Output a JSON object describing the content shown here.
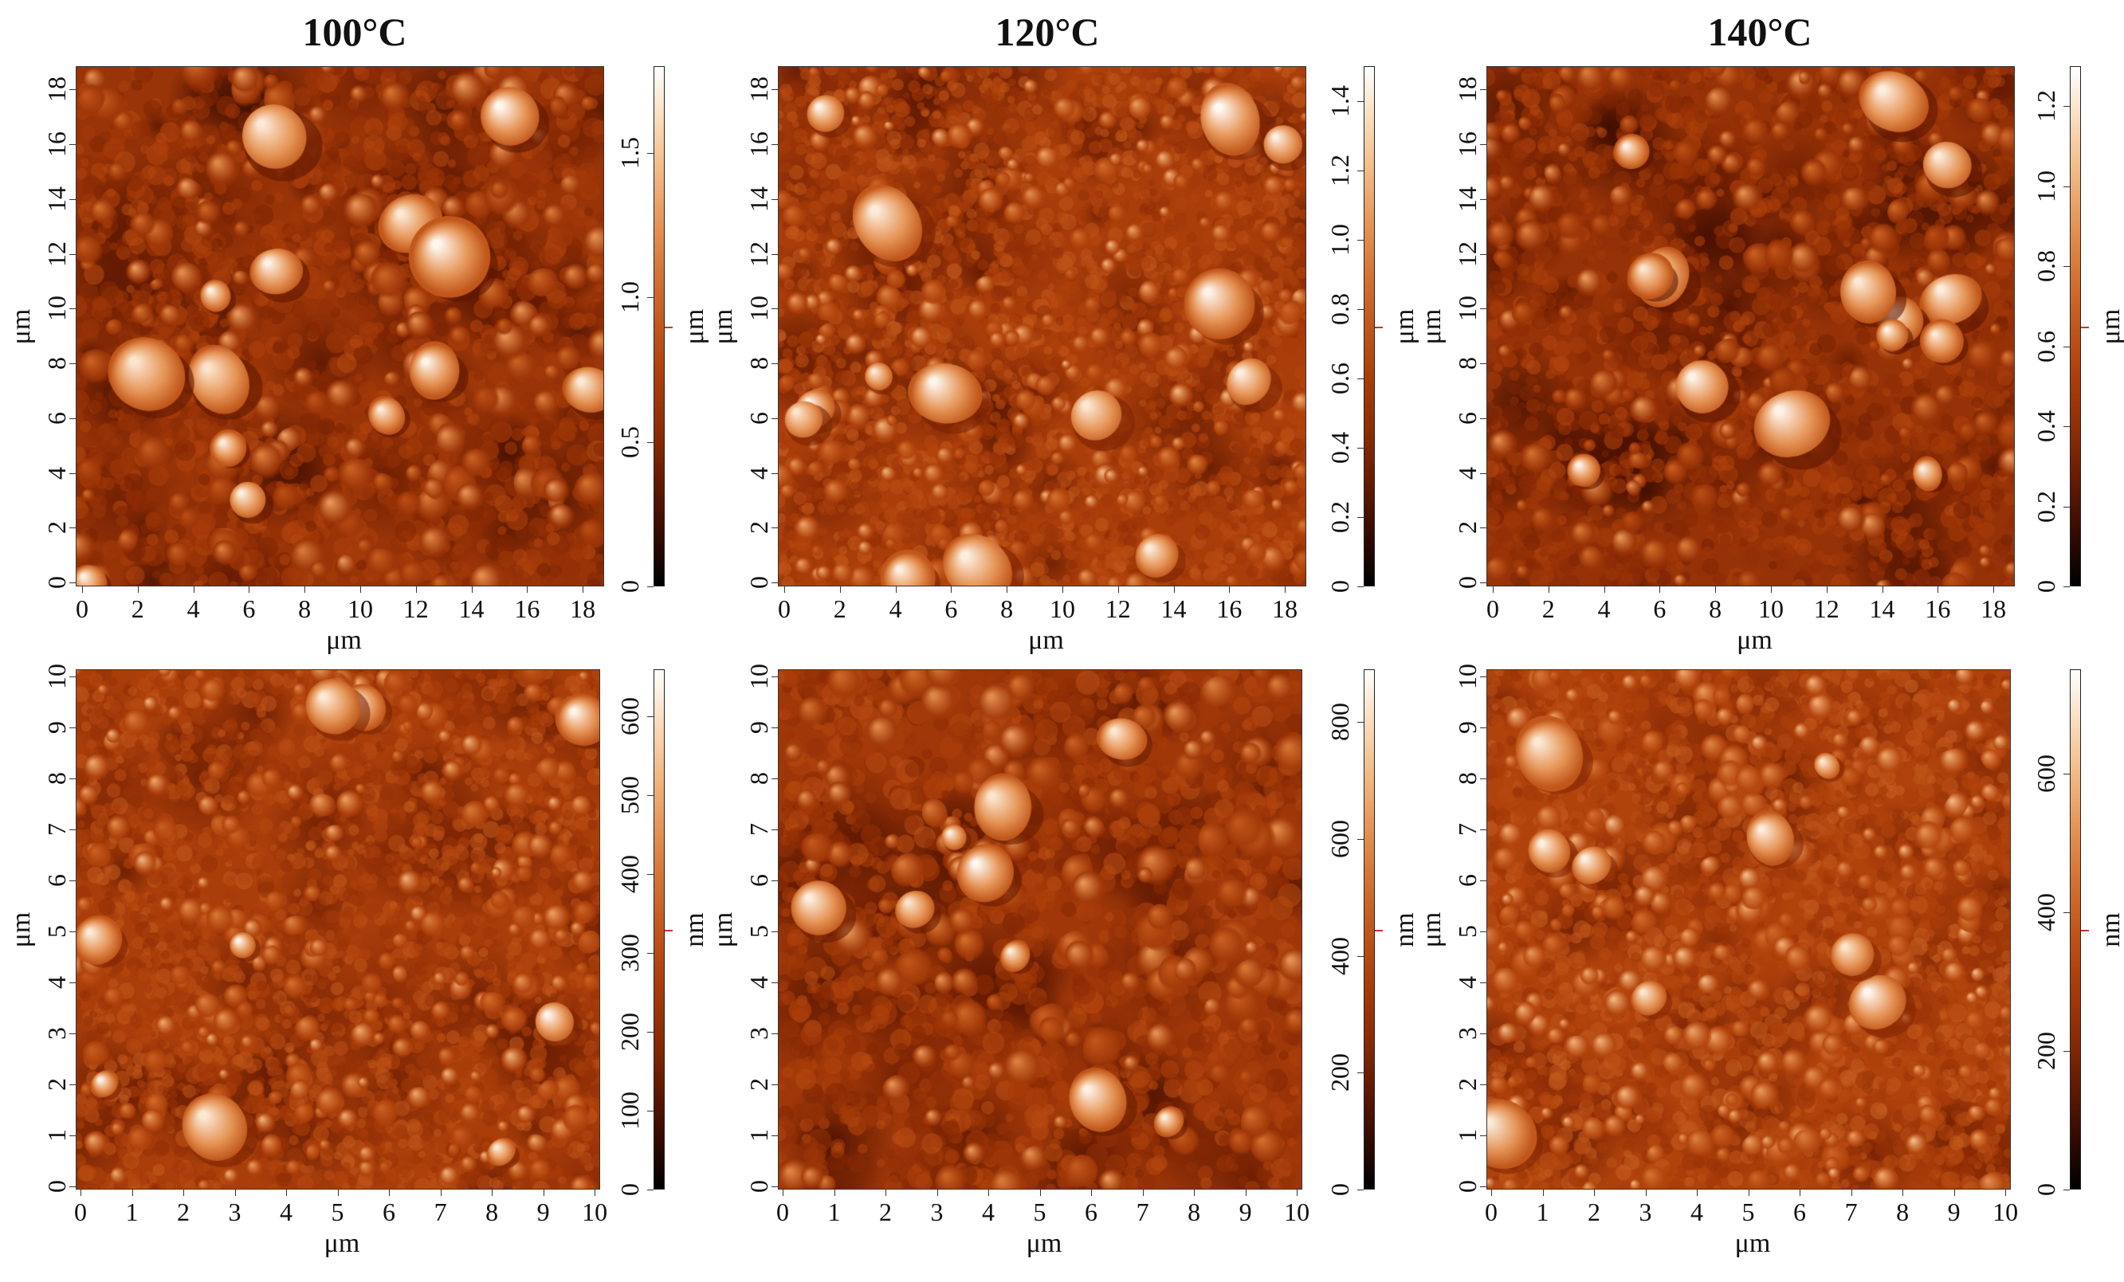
{
  "columns": [
    "100°C",
    "120°C",
    "140°C"
  ],
  "palette": [
    "#000000",
    "#4a0f00",
    "#8a2a05",
    "#b2430c",
    "#cf6a2a",
    "#e99a5d",
    "#f8cfa2",
    "#ffffff"
  ],
  "panels": [
    {
      "id": "top-100",
      "x_ticks": [
        "0",
        "2",
        "4",
        "6",
        "8",
        "10",
        "12",
        "14",
        "16",
        "18"
      ],
      "x_max": 19,
      "y_ticks": [
        "0",
        "2",
        "4",
        "6",
        "8",
        "10",
        "12",
        "14",
        "16",
        "18"
      ],
      "y_max": 19,
      "x_label": "μm",
      "y_label": "μm",
      "cb_ticks": [
        {
          "label": "0",
          "v": 0
        },
        {
          "label": "0.5",
          "v": 0.5
        },
        {
          "label": "1.0",
          "v": 1.0
        },
        {
          "label": "1.5",
          "v": 1.5
        }
      ],
      "cb_max": 1.8,
      "cb_unit": "μm",
      "cb_marker": 0.9,
      "base_lightness": 0.34,
      "grain_density": 1.0,
      "grain_scale": 1.0
    },
    {
      "id": "top-120",
      "x_ticks": [
        "0",
        "2",
        "4",
        "6",
        "8",
        "10",
        "12",
        "14",
        "16",
        "18"
      ],
      "x_max": 19,
      "y_ticks": [
        "0",
        "2",
        "4",
        "6",
        "8",
        "10",
        "12",
        "14",
        "16",
        "18"
      ],
      "y_max": 19,
      "x_label": "μm",
      "y_label": "μm",
      "cb_ticks": [
        {
          "label": "0",
          "v": 0
        },
        {
          "label": "0.2",
          "v": 0.2
        },
        {
          "label": "0.4",
          "v": 0.4
        },
        {
          "label": "0.6",
          "v": 0.6
        },
        {
          "label": "0.8",
          "v": 0.8
        },
        {
          "label": "1.0",
          "v": 1.0
        },
        {
          "label": "1.2",
          "v": 1.2
        },
        {
          "label": "1.4",
          "v": 1.4
        }
      ],
      "cb_max": 1.5,
      "cb_unit": "μm",
      "cb_marker": 0.75,
      "base_lightness": 0.4,
      "grain_density": 1.6,
      "grain_scale": 0.7
    },
    {
      "id": "top-140",
      "x_ticks": [
        "0",
        "2",
        "4",
        "6",
        "8",
        "10",
        "12",
        "14",
        "16",
        "18"
      ],
      "x_max": 19,
      "y_ticks": [
        "0",
        "2",
        "4",
        "6",
        "8",
        "10",
        "12",
        "14",
        "16",
        "18"
      ],
      "y_max": 19,
      "x_label": "μm",
      "y_label": "μm",
      "cb_ticks": [
        {
          "label": "0",
          "v": 0
        },
        {
          "label": "0.2",
          "v": 0.2
        },
        {
          "label": "0.4",
          "v": 0.4
        },
        {
          "label": "0.6",
          "v": 0.6
        },
        {
          "label": "0.8",
          "v": 0.8
        },
        {
          "label": "1.0",
          "v": 1.0
        },
        {
          "label": "1.2",
          "v": 1.2
        }
      ],
      "cb_max": 1.3,
      "cb_unit": "μm",
      "cb_marker": 0.65,
      "base_lightness": 0.33,
      "grain_density": 1.1,
      "grain_scale": 0.85
    },
    {
      "id": "bottom-100",
      "x_ticks": [
        "0",
        "1",
        "2",
        "3",
        "4",
        "5",
        "6",
        "7",
        "8",
        "9",
        "10"
      ],
      "x_max": 10.2,
      "y_ticks": [
        "0",
        "1",
        "2",
        "3",
        "4",
        "5",
        "6",
        "7",
        "8",
        "9",
        "10"
      ],
      "y_max": 10.2,
      "x_label": "μm",
      "y_label": "μm",
      "cb_ticks": [
        {
          "label": "0",
          "v": 0
        },
        {
          "label": "100",
          "v": 100
        },
        {
          "label": "200",
          "v": 200
        },
        {
          "label": "300",
          "v": 300
        },
        {
          "label": "400",
          "v": 400
        },
        {
          "label": "500",
          "v": 500
        },
        {
          "label": "600",
          "v": 600
        }
      ],
      "cb_max": 660,
      "cb_unit": "nm",
      "cb_marker": 330,
      "base_lightness": 0.4,
      "grain_density": 1.5,
      "grain_scale": 0.75
    },
    {
      "id": "bottom-120",
      "x_ticks": [
        "0",
        "1",
        "2",
        "3",
        "4",
        "5",
        "6",
        "7",
        "8",
        "9",
        "10"
      ],
      "x_max": 10.2,
      "y_ticks": [
        "0",
        "1",
        "2",
        "3",
        "4",
        "5",
        "6",
        "7",
        "8",
        "9",
        "10"
      ],
      "y_max": 10.2,
      "x_label": "μm",
      "y_label": "μm",
      "cb_ticks": [
        {
          "label": "0",
          "v": 0
        },
        {
          "label": "200",
          "v": 200
        },
        {
          "label": "400",
          "v": 400
        },
        {
          "label": "600",
          "v": 600
        },
        {
          "label": "800",
          "v": 800
        }
      ],
      "cb_max": 890,
      "cb_unit": "nm",
      "cb_marker": 445,
      "base_lightness": 0.36,
      "grain_density": 0.9,
      "grain_scale": 1.1
    },
    {
      "id": "bottom-140",
      "x_ticks": [
        "0",
        "1",
        "2",
        "3",
        "4",
        "5",
        "6",
        "7",
        "8",
        "9",
        "10"
      ],
      "x_max": 10.2,
      "y_ticks": [
        "0",
        "1",
        "2",
        "3",
        "4",
        "5",
        "6",
        "7",
        "8",
        "9",
        "10"
      ],
      "y_max": 10.2,
      "x_label": "μm",
      "y_label": "μm",
      "cb_ticks": [
        {
          "label": "0",
          "v": 0
        },
        {
          "label": "200",
          "v": 200
        },
        {
          "label": "400",
          "v": 400
        },
        {
          "label": "600",
          "v": 600
        }
      ],
      "cb_max": 750,
      "cb_unit": "nm",
      "cb_marker": 375,
      "base_lightness": 0.42,
      "grain_density": 1.6,
      "grain_scale": 0.8
    }
  ]
}
